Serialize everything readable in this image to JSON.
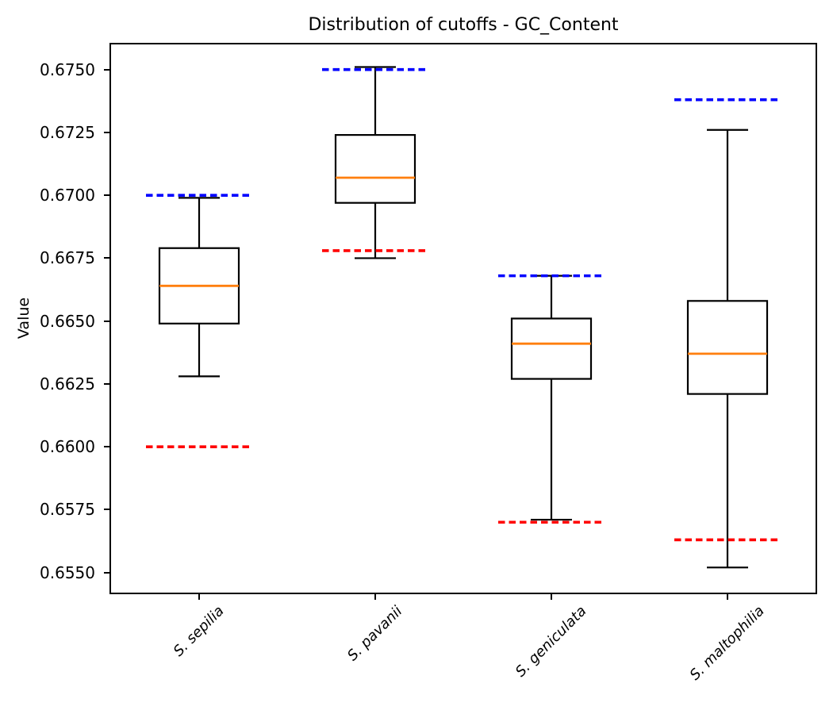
{
  "chart_data": {
    "type": "boxplot",
    "title": "Distribution of cutoffs - GC_Content",
    "ylabel": "Value",
    "xlabel": "",
    "categories": [
      "S. sepilia",
      "S. pavanii",
      "S. geniculata",
      "S. maltophilia"
    ],
    "ylim": [
      0.6542,
      0.676
    ],
    "yticks": [
      0.655,
      0.6575,
      0.66,
      0.6625,
      0.665,
      0.6675,
      0.67,
      0.6725,
      0.675
    ],
    "ytick_decimals": 4,
    "grid": false,
    "legend": "none",
    "series": [
      {
        "label": "S. sepilia",
        "whisker_low": 0.6628,
        "q1": 0.6649,
        "median": 0.6664,
        "q3": 0.6679,
        "whisker_high": 0.6699,
        "upper_cutoff": 0.67,
        "lower_cutoff": 0.66
      },
      {
        "label": "S. pavanii",
        "whisker_low": 0.6675,
        "q1": 0.6697,
        "median": 0.6707,
        "q3": 0.6724,
        "whisker_high": 0.6751,
        "upper_cutoff": 0.675,
        "lower_cutoff": 0.6678
      },
      {
        "label": "S. geniculata",
        "whisker_low": 0.6571,
        "q1": 0.6627,
        "median": 0.6641,
        "q3": 0.6651,
        "whisker_high": 0.6668,
        "upper_cutoff": 0.6668,
        "lower_cutoff": 0.657
      },
      {
        "label": "S. maltophilia",
        "whisker_low": 0.6552,
        "q1": 0.6621,
        "median": 0.6637,
        "q3": 0.6658,
        "whisker_high": 0.6726,
        "upper_cutoff": 0.6738,
        "lower_cutoff": 0.6563
      }
    ],
    "colors": {
      "median": "#ff7f0e",
      "upper_cutoff": "#0000ff",
      "lower_cutoff": "#ff0000",
      "box_edge": "#000000",
      "background": "#ffffff"
    },
    "line_styles": {
      "cutoff_linestyle": "dashed"
    }
  }
}
